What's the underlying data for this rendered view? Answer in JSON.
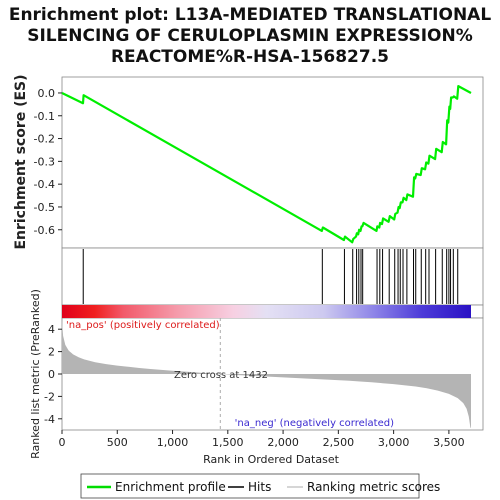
{
  "chart_data": {
    "type": "line",
    "title_lines": [
      "Enrichment plot: L13A-MEDIATED TRANSLATIONAL",
      "SILENCING OF CERULOPLASMIN EXPRESSION%",
      "REACTOME%R-HSA-156827.5"
    ],
    "xlabel": "Rank in Ordered Dataset",
    "es_ylabel": "Enrichment score (ES)",
    "metric_ylabel": "Ranked list metric (PreRanked)",
    "xlim": [
      0,
      3700
    ],
    "es_ylim": [
      -0.68,
      0.07
    ],
    "metric_ylim": [
      -5,
      5
    ],
    "x_ticks": [
      0,
      500,
      1000,
      1500,
      2000,
      2500,
      3000,
      3500
    ],
    "x_tick_labels": [
      "0",
      "500",
      "1,000",
      "1,500",
      "2,000",
      "2,500",
      "3,000",
      "3,500"
    ],
    "es_ticks": [
      0.0,
      -0.1,
      -0.2,
      -0.3,
      -0.4,
      -0.5,
      -0.6
    ],
    "es_tick_labels": [
      "0.0",
      "-0.1",
      "-0.2",
      "-0.3",
      "-0.4",
      "-0.5",
      "-0.6"
    ],
    "metric_ticks": [
      4,
      2,
      0,
      -2,
      -4
    ],
    "metric_tick_labels": [
      "4",
      "2",
      "0",
      "-2",
      "-4"
    ],
    "zero_cross_rank": 1432,
    "zero_cross_label": "Zero cross at 1432",
    "pos_label": "'na_pos' (positively correlated)",
    "neg_label": "'na_neg' (negatively correlated)",
    "hits": [
      192,
      2355,
      2555,
      2630,
      2665,
      2685,
      2705,
      2720,
      2850,
      2875,
      2900,
      2960,
      3010,
      3040,
      3060,
      3085,
      3120,
      3180,
      3200,
      3250,
      3290,
      3320,
      3380,
      3440,
      3480,
      3500,
      3515,
      3540,
      3580
    ],
    "es_curve": [
      [
        0,
        0.0
      ],
      [
        190,
        -0.045
      ],
      [
        195,
        -0.01
      ],
      [
        2350,
        -0.605
      ],
      [
        2360,
        -0.59
      ],
      [
        2550,
        -0.645
      ],
      [
        2560,
        -0.63
      ],
      [
        2625,
        -0.655
      ],
      [
        2635,
        -0.64
      ],
      [
        2660,
        -0.63
      ],
      [
        2668,
        -0.615
      ],
      [
        2680,
        -0.62
      ],
      [
        2688,
        -0.6
      ],
      [
        2700,
        -0.605
      ],
      [
        2710,
        -0.585
      ],
      [
        2718,
        -0.585
      ],
      [
        2728,
        -0.57
      ],
      [
        2845,
        -0.605
      ],
      [
        2852,
        -0.585
      ],
      [
        2870,
        -0.59
      ],
      [
        2878,
        -0.57
      ],
      [
        2895,
        -0.575
      ],
      [
        2905,
        -0.55
      ],
      [
        2955,
        -0.565
      ],
      [
        2965,
        -0.54
      ],
      [
        3005,
        -0.555
      ],
      [
        3015,
        -0.53
      ],
      [
        3035,
        -0.525
      ],
      [
        3045,
        -0.5
      ],
      [
        3055,
        -0.505
      ],
      [
        3065,
        -0.48
      ],
      [
        3080,
        -0.48
      ],
      [
        3090,
        -0.46
      ],
      [
        3115,
        -0.47
      ],
      [
        3125,
        -0.445
      ],
      [
        3175,
        -0.455
      ],
      [
        3185,
        -0.37
      ],
      [
        3195,
        -0.375
      ],
      [
        3205,
        -0.355
      ],
      [
        3245,
        -0.36
      ],
      [
        3255,
        -0.33
      ],
      [
        3285,
        -0.335
      ],
      [
        3295,
        -0.305
      ],
      [
        3315,
        -0.31
      ],
      [
        3325,
        -0.275
      ],
      [
        3375,
        -0.29
      ],
      [
        3385,
        -0.245
      ],
      [
        3435,
        -0.26
      ],
      [
        3445,
        -0.215
      ],
      [
        3475,
        -0.225
      ],
      [
        3485,
        -0.12
      ],
      [
        3495,
        -0.13
      ],
      [
        3505,
        -0.06
      ],
      [
        3512,
        -0.07
      ],
      [
        3520,
        -0.02
      ],
      [
        3535,
        -0.02
      ],
      [
        3545,
        -0.015
      ],
      [
        3575,
        -0.025
      ],
      [
        3585,
        0.03
      ],
      [
        3700,
        0.0
      ]
    ],
    "metric_curve": [
      [
        0,
        4.8
      ],
      [
        10,
        3.4
      ],
      [
        30,
        2.6
      ],
      [
        60,
        2.1
      ],
      [
        100,
        1.75
      ],
      [
        150,
        1.5
      ],
      [
        200,
        1.3
      ],
      [
        300,
        1.05
      ],
      [
        400,
        0.88
      ],
      [
        500,
        0.75
      ],
      [
        600,
        0.64
      ],
      [
        700,
        0.54
      ],
      [
        800,
        0.45
      ],
      [
        900,
        0.37
      ],
      [
        1000,
        0.29
      ],
      [
        1100,
        0.22
      ],
      [
        1200,
        0.15
      ],
      [
        1300,
        0.08
      ],
      [
        1432,
        0.0
      ],
      [
        1600,
        -0.1
      ],
      [
        1800,
        -0.2
      ],
      [
        2000,
        -0.3
      ],
      [
        2200,
        -0.4
      ],
      [
        2400,
        -0.5
      ],
      [
        2600,
        -0.61
      ],
      [
        2800,
        -0.74
      ],
      [
        3000,
        -0.9
      ],
      [
        3200,
        -1.12
      ],
      [
        3300,
        -1.27
      ],
      [
        3400,
        -1.48
      ],
      [
        3500,
        -1.78
      ],
      [
        3580,
        -2.15
      ],
      [
        3630,
        -2.6
      ],
      [
        3660,
        -3.1
      ],
      [
        3680,
        -3.8
      ],
      [
        3695,
        -4.8
      ],
      [
        3700,
        -4.8
      ]
    ],
    "heatmap_stops": [
      {
        "offset": 0.0,
        "color": "#e0001a"
      },
      {
        "offset": 0.08,
        "color": "#f02020"
      },
      {
        "offset": 0.15,
        "color": "#f25a6a"
      },
      {
        "offset": 0.28,
        "color": "#f59aaa"
      },
      {
        "offset": 0.42,
        "color": "#f7d0e2"
      },
      {
        "offset": 0.5,
        "color": "#e4e0f4"
      },
      {
        "offset": 0.64,
        "color": "#cdc9f0"
      },
      {
        "offset": 0.76,
        "color": "#8f86e8"
      },
      {
        "offset": 0.88,
        "color": "#4d3bd8"
      },
      {
        "offset": 1.0,
        "color": "#2a12c4"
      }
    ],
    "legend": [
      {
        "label": "Enrichment profile",
        "color": "#00dd00",
        "kind": "line"
      },
      {
        "label": "Hits",
        "color": "#000000",
        "kind": "line"
      },
      {
        "label": "Ranking metric scores",
        "color": "#c8c8c8",
        "kind": "line"
      }
    ],
    "colors": {
      "profile": "#00ee00",
      "hits": "#000000",
      "metric_fill": "#b4b4b4",
      "pos_text": "#dd1a1a",
      "neg_text": "#3a2ad0",
      "zero_line": "#aaaaaa"
    }
  }
}
